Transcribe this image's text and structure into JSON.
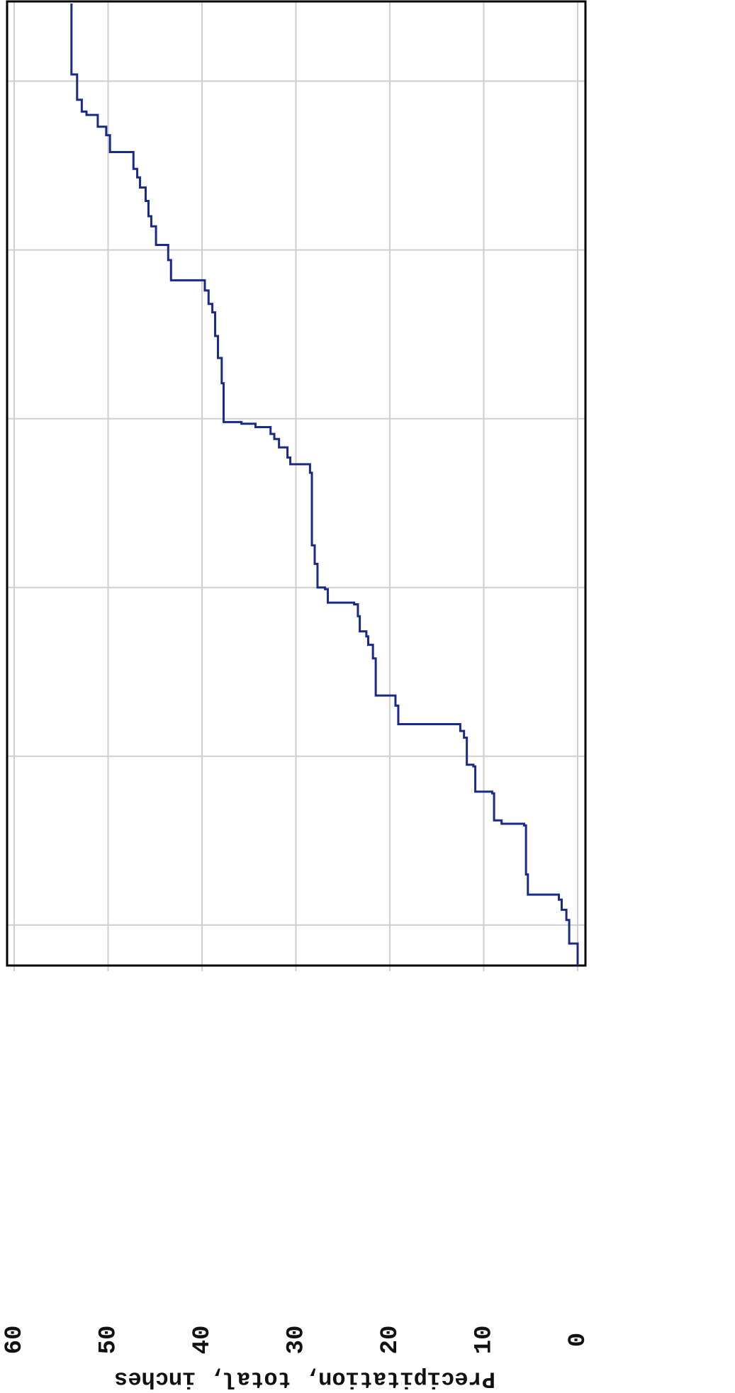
{
  "chart_data": {
    "type": "line",
    "drawstyle": "steps-post",
    "orientation": "rotated",
    "ylabel": "Precipitation, total, inches",
    "ylim": [
      0,
      60
    ],
    "yticks": [
      0,
      10,
      20,
      30,
      40,
      50,
      60
    ],
    "xlim": [
      0,
      5.7
    ],
    "xticks": [
      0.24,
      1.24,
      2.24,
      3.24,
      4.24,
      5.24
    ],
    "grid": true,
    "series": [
      {
        "color": "#1a2a8a",
        "x": [
          0,
          0.13,
          0.27,
          0.33,
          0.39,
          0.42,
          0.54,
          0.83,
          0.84,
          0.86,
          1.02,
          1.03,
          1.18,
          1.19,
          1.35,
          1.39,
          1.43,
          1.54,
          1.6,
          1.82,
          1.9,
          1.95,
          1.98,
          2.07,
          2.14,
          2.15,
          2.23,
          2.24,
          2.38,
          2.49,
          2.92,
          2.97,
          3.01,
          3.07,
          3.12,
          3.15,
          3.19,
          3.21,
          3.22,
          3.45,
          3.6,
          3.73,
          3.87,
          3.92,
          4.0,
          4.06,
          4.18,
          4.27,
          4.38,
          4.44,
          4.53,
          4.61,
          4.67,
          4.72,
          4.82,
          4.92,
          4.97,
          5.04,
          5.06,
          5.13,
          5.28,
          5.7
        ],
        "values": [
          0,
          0.9,
          1.2,
          1.7,
          2.0,
          5.3,
          5.5,
          5.7,
          8.1,
          8.9,
          9.1,
          10.9,
          11.1,
          11.8,
          12.1,
          12.5,
          19.1,
          19.4,
          21.5,
          21.8,
          22.3,
          22.5,
          23.2,
          23.4,
          23.8,
          26.6,
          26.9,
          27.7,
          28.0,
          28.3,
          28.5,
          30.6,
          30.9,
          31.8,
          32.3,
          32.7,
          34.3,
          35.8,
          37.7,
          37.9,
          38.3,
          38.6,
          38.9,
          39.3,
          39.7,
          43.3,
          43.6,
          44.9,
          45.4,
          45.7,
          46.0,
          46.6,
          46.9,
          47.3,
          49.8,
          50.2,
          51.1,
          52.3,
          52.8,
          53.3,
          53.9,
          53.9
        ]
      }
    ]
  }
}
